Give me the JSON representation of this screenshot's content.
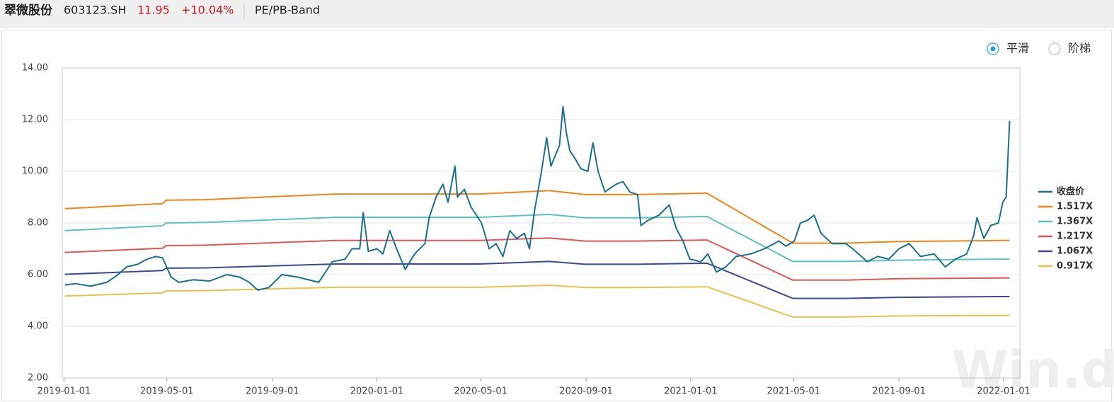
{
  "header": {
    "name": "翠微股份",
    "code": "603123.SH",
    "price": "11.95",
    "change": "+10.04%",
    "tab": "PE/PB-Band"
  },
  "options": [
    {
      "label": "平滑",
      "selected": true
    },
    {
      "label": "阶梯",
      "selected": false
    }
  ],
  "watermark": "Win.d",
  "chart_data": {
    "type": "line",
    "xlim": [
      "2018-12-30",
      "2022-01-20"
    ],
    "xticks": [
      "2019-01-01",
      "2019-05-01",
      "2019-09-01",
      "2020-01-01",
      "2020-05-01",
      "2020-09-01",
      "2021-01-01",
      "2021-05-01",
      "2021-09-01",
      "2022-01-01"
    ],
    "ylim": [
      2,
      14
    ],
    "yticks": [
      {
        "value": 2,
        "label": "2.00"
      },
      {
        "value": 4,
        "label": "4.00"
      },
      {
        "value": 6,
        "label": "6.00"
      },
      {
        "value": 8,
        "label": "8.00"
      },
      {
        "value": 10,
        "label": "10.00"
      },
      {
        "value": 12,
        "label": "12.00"
      },
      {
        "value": 14,
        "label": "14.00"
      }
    ],
    "grid": true,
    "legend": "right",
    "series": [
      {
        "name": "收盘价",
        "color": "#1b6f8f",
        "x": [
          "2019-01-02",
          "2019-01-15",
          "2019-02-01",
          "2019-02-20",
          "2019-03-05",
          "2019-03-15",
          "2019-03-28",
          "2019-04-08",
          "2019-04-18",
          "2019-04-26",
          "2019-05-06",
          "2019-05-15",
          "2019-06-01",
          "2019-06-20",
          "2019-07-10",
          "2019-07-25",
          "2019-08-05",
          "2019-08-15",
          "2019-08-28",
          "2019-09-12",
          "2019-10-01",
          "2019-10-25",
          "2019-11-10",
          "2019-11-25",
          "2019-12-03",
          "2019-12-12",
          "2019-12-16",
          "2019-12-22",
          "2020-01-01",
          "2020-01-08",
          "2020-01-16",
          "2020-01-24",
          "2020-02-03",
          "2020-02-14",
          "2020-02-26",
          "2020-03-02",
          "2020-03-10",
          "2020-03-18",
          "2020-03-24",
          "2020-04-01",
          "2020-04-04",
          "2020-04-12",
          "2020-04-20",
          "2020-05-02",
          "2020-05-11",
          "2020-05-19",
          "2020-05-27",
          "2020-06-04",
          "2020-06-12",
          "2020-06-21",
          "2020-06-27",
          "2020-07-03",
          "2020-07-11",
          "2020-07-17",
          "2020-07-22",
          "2020-08-01",
          "2020-08-05",
          "2020-08-09",
          "2020-08-13",
          "2020-08-19",
          "2020-08-26",
          "2020-09-03",
          "2020-09-09",
          "2020-09-15",
          "2020-09-23",
          "2020-10-06",
          "2020-10-14",
          "2020-10-22",
          "2020-10-31",
          "2020-11-04",
          "2020-11-12",
          "2020-11-25",
          "2020-12-07",
          "2020-12-15",
          "2020-12-23",
          "2020-12-31",
          "2021-01-13",
          "2021-01-21",
          "2021-01-31",
          "2021-02-11",
          "2021-02-23",
          "2021-03-12",
          "2021-03-28",
          "2021-04-14",
          "2021-04-22",
          "2021-05-02",
          "2021-05-09",
          "2021-05-17",
          "2021-05-25",
          "2021-06-02",
          "2021-06-15",
          "2021-07-01",
          "2021-07-09",
          "2021-07-26",
          "2021-08-07",
          "2021-08-20",
          "2021-09-01",
          "2021-09-13",
          "2021-09-26",
          "2021-10-12",
          "2021-10-25",
          "2021-11-06",
          "2021-11-19",
          "2021-11-27",
          "2021-12-01",
          "2021-12-09",
          "2021-12-17",
          "2021-12-26",
          "2021-12-31",
          "2022-01-04",
          "2022-01-08"
        ],
        "values": [
          5.6,
          5.65,
          5.55,
          5.7,
          6.0,
          6.3,
          6.4,
          6.6,
          6.7,
          6.65,
          5.9,
          5.7,
          5.8,
          5.75,
          6.0,
          5.9,
          5.7,
          5.4,
          5.5,
          6.0,
          5.9,
          5.7,
          6.5,
          6.6,
          7.0,
          7.0,
          8.4,
          6.9,
          7.0,
          6.8,
          7.7,
          7.0,
          6.2,
          6.8,
          7.2,
          8.2,
          9.0,
          9.5,
          8.8,
          10.2,
          9.0,
          9.3,
          8.6,
          8.0,
          7.0,
          7.2,
          6.7,
          7.7,
          7.4,
          7.6,
          7.0,
          8.5,
          10.0,
          11.3,
          10.2,
          11.0,
          12.5,
          11.5,
          10.8,
          10.5,
          10.1,
          10.0,
          11.1,
          10.0,
          9.2,
          9.5,
          9.6,
          9.2,
          9.1,
          7.9,
          8.1,
          8.3,
          8.7,
          7.8,
          7.3,
          6.6,
          6.5,
          6.8,
          6.1,
          6.3,
          6.7,
          6.8,
          7.0,
          7.3,
          7.1,
          7.3,
          8.0,
          8.1,
          8.3,
          7.6,
          7.2,
          7.2,
          7.0,
          6.5,
          6.7,
          6.6,
          7.0,
          7.2,
          6.7,
          6.8,
          6.3,
          6.6,
          6.8,
          7.5,
          8.2,
          7.4,
          7.9,
          8.0,
          8.8,
          9.0,
          11.95
        ]
      },
      {
        "name": "1.517X",
        "color": "#f0861a",
        "x": [
          "2019-01-02",
          "2019-04-26",
          "2019-04-30",
          "2019-06-15",
          "2019-11-15",
          "2020-04-30",
          "2020-07-20",
          "2020-08-31",
          "2020-10-30",
          "2021-01-20",
          "2021-04-30",
          "2021-07-01",
          "2021-09-01",
          "2021-12-31",
          "2022-01-08"
        ],
        "values": [
          8.55,
          8.75,
          8.88,
          8.9,
          9.12,
          9.12,
          9.25,
          9.1,
          9.1,
          9.15,
          7.22,
          7.22,
          7.28,
          7.32,
          7.32
        ]
      },
      {
        "name": "1.367X",
        "color": "#5cc2bf",
        "x": [
          "2019-01-02",
          "2019-04-26",
          "2019-04-30",
          "2019-06-15",
          "2019-11-15",
          "2020-04-30",
          "2020-07-20",
          "2020-08-31",
          "2020-10-30",
          "2021-01-20",
          "2021-04-30",
          "2021-07-01",
          "2021-09-01",
          "2021-12-31",
          "2022-01-08"
        ],
        "values": [
          7.7,
          7.89,
          8.0,
          8.02,
          8.22,
          8.22,
          8.33,
          8.2,
          8.2,
          8.25,
          6.51,
          6.51,
          6.56,
          6.6,
          6.6
        ]
      },
      {
        "name": "1.217X",
        "color": "#e05656",
        "x": [
          "2019-01-02",
          "2019-04-26",
          "2019-04-30",
          "2019-06-15",
          "2019-11-15",
          "2020-04-30",
          "2020-07-20",
          "2020-08-31",
          "2020-10-30",
          "2021-01-20",
          "2021-04-30",
          "2021-07-01",
          "2021-09-01",
          "2021-12-31",
          "2022-01-08"
        ],
        "values": [
          6.86,
          7.02,
          7.12,
          7.14,
          7.32,
          7.32,
          7.42,
          7.3,
          7.3,
          7.34,
          5.79,
          5.79,
          5.84,
          5.87,
          5.87
        ]
      },
      {
        "name": "1.067X",
        "color": "#3e4a8c",
        "x": [
          "2019-01-02",
          "2019-04-26",
          "2019-04-30",
          "2019-06-15",
          "2019-11-15",
          "2020-04-30",
          "2020-07-20",
          "2020-08-31",
          "2020-10-30",
          "2021-01-20",
          "2021-04-30",
          "2021-07-01",
          "2021-09-01",
          "2021-12-31",
          "2022-01-08"
        ],
        "values": [
          6.01,
          6.16,
          6.25,
          6.26,
          6.41,
          6.41,
          6.51,
          6.4,
          6.4,
          6.44,
          5.08,
          5.08,
          5.12,
          5.15,
          5.15
        ]
      },
      {
        "name": "0.917X",
        "color": "#e8c24c",
        "x": [
          "2019-01-02",
          "2019-04-26",
          "2019-04-30",
          "2019-06-15",
          "2019-11-15",
          "2020-04-30",
          "2020-07-20",
          "2020-08-31",
          "2020-10-30",
          "2021-01-20",
          "2021-04-30",
          "2021-07-01",
          "2021-09-01",
          "2021-12-31",
          "2022-01-08"
        ],
        "values": [
          5.17,
          5.29,
          5.37,
          5.38,
          5.51,
          5.51,
          5.59,
          5.5,
          5.5,
          5.53,
          4.36,
          4.36,
          4.4,
          4.42,
          4.42
        ]
      }
    ]
  }
}
